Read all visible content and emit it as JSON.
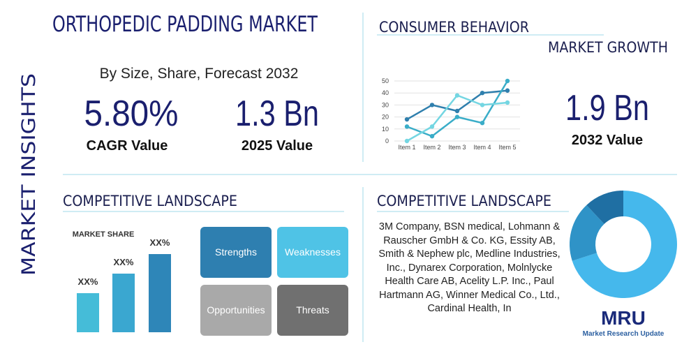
{
  "header": {
    "title": "ORTHOPEDIC PADDING MARKET",
    "side_label": "MARKET INSIGHTS",
    "subtitle": "By Size, Share, Forecast 2032"
  },
  "stats": {
    "cagr": {
      "value": "5.80%",
      "label": "CAGR Value"
    },
    "value_2025": {
      "value": "1.3 Bn",
      "label": "2025 Value"
    },
    "value_2032": {
      "value": "1.9 Bn",
      "label": "2032 Value"
    }
  },
  "consumer_behavior": {
    "title": "CONSUMER BEHAVIOR",
    "subtitle": "MARKET GROWTH",
    "chart": {
      "type": "line",
      "categories": [
        "Item 1",
        "Item 2",
        "Item 3",
        "Item 4",
        "Item 5"
      ],
      "ylim": [
        0,
        50
      ],
      "yticks": [
        0,
        10,
        20,
        30,
        40,
        50
      ],
      "series": [
        {
          "color": "#2f7fad",
          "values": [
            18,
            30,
            25,
            40,
            42
          ]
        },
        {
          "color": "#3aadc8",
          "values": [
            12,
            4,
            20,
            15,
            50
          ]
        },
        {
          "color": "#74d6e2",
          "values": [
            0,
            12,
            38,
            30,
            32
          ]
        }
      ]
    }
  },
  "competitive_landscape": {
    "title": "COMPETITIVE LANDSCAPE",
    "chart": {
      "type": "bar",
      "title": "MARKET SHARE",
      "values": [
        2,
        3,
        4
      ],
      "value_labels": [
        "XX%",
        "XX%",
        "XX%"
      ],
      "colors": [
        "#45bcd8",
        "#3aa7d0",
        "#2e86b8"
      ],
      "ylim": [
        0,
        4
      ]
    },
    "swot": [
      {
        "label": "Strengths",
        "color": "#2e7fb0"
      },
      {
        "label": "Weaknesses",
        "color": "#4fc3e6"
      },
      {
        "label": "Opportunities",
        "color": "#a9a9a9"
      },
      {
        "label": "Threats",
        "color": "#707070"
      }
    ]
  },
  "companies": {
    "title": "COMPETITIVE LANDSCAPE",
    "text": "3M Company, BSN medical, Lohmann & Rauscher GmbH & Co. KG, Essity AB, Smith & Nephew plc, Medline Industries, Inc., Dynarex Corporation, Molnlycke Health Care AB, Acelity L.P. Inc., Paul Hartmann AG, Winner Medical Co., Ltd., Cardinal Health, In",
    "chart": {
      "type": "pie",
      "values": [
        70,
        18,
        12
      ],
      "colors": [
        "#45b8ec",
        "#2f93c7",
        "#1f6fa3"
      ]
    }
  },
  "logo": {
    "text": "MRU",
    "caption": "Market Research Update"
  }
}
